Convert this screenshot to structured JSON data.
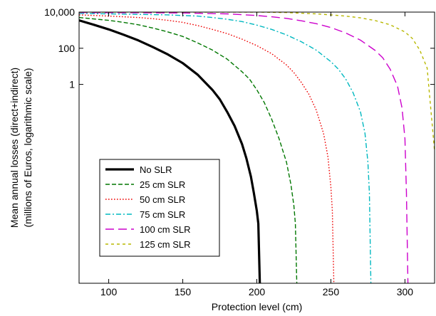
{
  "chart_data": {
    "type": "line",
    "xlabel": "Protection level (cm)",
    "ylabel": [
      "Mean annual losses (direct+indirect)",
      "(millions of Euros, logarithmic scale)"
    ],
    "x_scale": "linear",
    "y_scale": "log",
    "xlim": [
      80,
      320
    ],
    "ylim": [
      1e-11,
      10000
    ],
    "x_ticks": [
      100,
      150,
      200,
      250,
      300
    ],
    "x_tick_labels": [
      "100",
      "150",
      "200",
      "250",
      "300"
    ],
    "y_ticks": [
      1,
      100,
      10000
    ],
    "y_tick_labels": [
      "1",
      "100",
      "10,000"
    ],
    "grid": false,
    "legend_position": "lower-left",
    "series": [
      {
        "name": "No SLR",
        "color": "#000000",
        "dash": "solid",
        "x": [
          80,
          90,
          100,
          110,
          120,
          130,
          140,
          150,
          160,
          170,
          175,
          180,
          185,
          190,
          193,
          196,
          198,
          200,
          201,
          202
        ],
        "y": [
          3500,
          2000,
          1100,
          560,
          270,
          115,
          45,
          15,
          3.5,
          0.5,
          0.15,
          0.03,
          0.005,
          0.0005,
          8e-05,
          8e-06,
          1e-06,
          1e-07,
          2e-08,
          1e-11
        ]
      },
      {
        "name": "25 cm SLR",
        "color": "#007700",
        "dash": "dashed",
        "x": [
          80,
          100,
          110,
          120,
          130,
          140,
          150,
          160,
          170,
          180,
          190,
          195,
          200,
          205,
          210,
          215,
          220,
          223,
          225,
          226,
          227
        ],
        "y": [
          5000,
          3500,
          2700,
          2000,
          1300,
          800,
          450,
          200,
          80,
          25,
          5,
          2,
          0.5,
          0.1,
          0.012,
          0.001,
          5e-05,
          3e-06,
          2e-07,
          2e-08,
          1e-11
        ]
      },
      {
        "name": "50 cm SLR",
        "color": "#ee0000",
        "dash": "dotted",
        "x": [
          80,
          100,
          110,
          120,
          130,
          140,
          150,
          160,
          170,
          180,
          190,
          200,
          210,
          220,
          225,
          230,
          235,
          240,
          245,
          248,
          250,
          251,
          252
        ],
        "y": [
          7000,
          6000,
          5500,
          5000,
          4300,
          3500,
          2700,
          1800,
          1100,
          650,
          320,
          140,
          50,
          12,
          4.5,
          1.3,
          0.3,
          0.04,
          0.002,
          0.0001,
          2e-06,
          1e-07,
          1e-11
        ]
      },
      {
        "name": "75 cm SLR",
        "color": "#00b8c0",
        "dash": "dashdot",
        "x": [
          80,
          100,
          120,
          140,
          150,
          160,
          170,
          180,
          190,
          200,
          210,
          220,
          230,
          240,
          250,
          255,
          260,
          265,
          270,
          273,
          275,
          276,
          277
        ],
        "y": [
          8500,
          8000,
          7500,
          7000,
          6500,
          6000,
          5000,
          4000,
          3000,
          1900,
          1100,
          550,
          230,
          80,
          18,
          7,
          2,
          0.35,
          0.03,
          0.002,
          5e-05,
          1e-06,
          1e-11
        ]
      },
      {
        "name": "100 cm SLR",
        "color": "#cc00cc",
        "dash": "longdash",
        "x": [
          80,
          100,
          150,
          180,
          200,
          210,
          220,
          230,
          240,
          250,
          260,
          270,
          280,
          285,
          290,
          295,
          298,
          300,
          301,
          302
        ],
        "y": [
          9500,
          9300,
          9000,
          8000,
          6500,
          5500,
          4500,
          3300,
          2300,
          1400,
          700,
          280,
          75,
          30,
          7,
          0.8,
          0.05,
          0.001,
          1e-06,
          1e-11
        ]
      },
      {
        "name": "125 cm SLR",
        "color": "#b8b800",
        "dash": "shortdash",
        "x": [
          80,
          150,
          200,
          220,
          240,
          250,
          260,
          270,
          280,
          290,
          300,
          305,
          310,
          315,
          320
        ],
        "y": [
          10000,
          10000,
          10000,
          9500,
          8000,
          7000,
          6000,
          4800,
          3400,
          2000,
          800,
          350,
          80,
          8,
          0.0002
        ]
      }
    ]
  }
}
